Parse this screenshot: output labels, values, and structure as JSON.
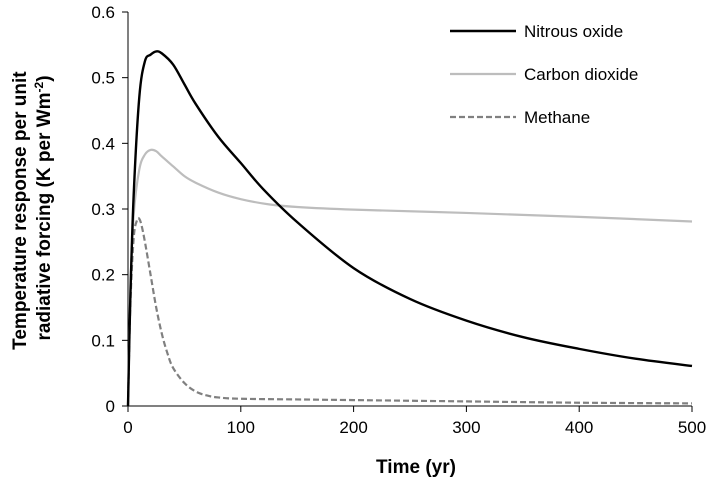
{
  "chart_data": {
    "type": "line",
    "title": "",
    "xlabel": "Time (yr)",
    "ylabel_line1": "Temperature response per unit",
    "ylabel_line2_pre": "radiative forcing (K per Wm",
    "ylabel_line2_sup": "-2",
    "ylabel_line2_post": ")",
    "xlim": [
      0,
      500
    ],
    "ylim": [
      0,
      0.6
    ],
    "x_ticks": [
      0,
      100,
      200,
      300,
      400,
      500
    ],
    "x_tick_labels": [
      "0",
      "100",
      "200",
      "300",
      "400",
      "500"
    ],
    "y_ticks": [
      0,
      0.1,
      0.2,
      0.3,
      0.4,
      0.5,
      0.6
    ],
    "y_tick_labels": [
      "0",
      "0.1",
      "0.2",
      "0.3",
      "0.4",
      "0.5",
      "0.6"
    ],
    "grid": false,
    "legend_position": "top-right",
    "series": [
      {
        "name": "Nitrous oxide",
        "color": "#000000",
        "dash": "solid",
        "x": [
          0,
          2,
          5,
          10,
          15,
          20,
          25,
          30,
          40,
          50,
          60,
          80,
          100,
          120,
          150,
          200,
          250,
          300,
          350,
          400,
          450,
          500
        ],
        "y": [
          0,
          0.16,
          0.32,
          0.47,
          0.525,
          0.535,
          0.54,
          0.537,
          0.52,
          0.49,
          0.46,
          0.41,
          0.37,
          0.33,
          0.28,
          0.21,
          0.163,
          0.13,
          0.105,
          0.087,
          0.072,
          0.061
        ]
      },
      {
        "name": "Carbon dioxide",
        "color": "#bdbdbd",
        "dash": "solid",
        "x": [
          0,
          2,
          5,
          10,
          15,
          20,
          25,
          30,
          40,
          50,
          60,
          80,
          100,
          125,
          150,
          200,
          300,
          400,
          500
        ],
        "y": [
          0,
          0.17,
          0.29,
          0.36,
          0.383,
          0.39,
          0.388,
          0.38,
          0.365,
          0.35,
          0.34,
          0.325,
          0.315,
          0.307,
          0.303,
          0.299,
          0.294,
          0.288,
          0.281
        ]
      },
      {
        "name": "Methane",
        "color": "#808080",
        "dash": "dashed",
        "x": [
          0,
          2,
          5,
          8,
          10,
          12,
          15,
          20,
          25,
          30,
          35,
          40,
          50,
          60,
          70,
          80,
          100,
          150,
          200,
          300,
          400,
          500
        ],
        "y": [
          0,
          0.15,
          0.255,
          0.283,
          0.285,
          0.275,
          0.25,
          0.2,
          0.15,
          0.11,
          0.08,
          0.058,
          0.035,
          0.022,
          0.016,
          0.013,
          0.011,
          0.01,
          0.009,
          0.007,
          0.005,
          0.004
        ]
      }
    ]
  }
}
